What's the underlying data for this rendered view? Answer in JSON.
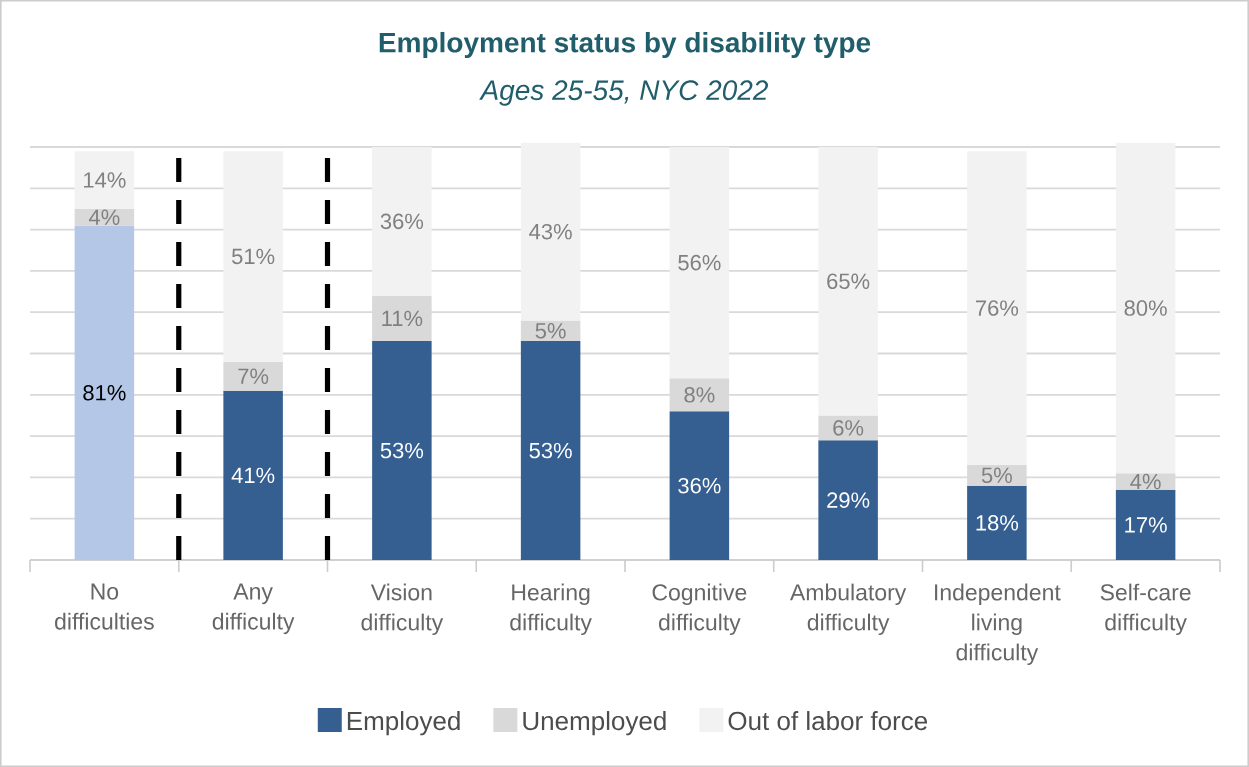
{
  "chart_data": {
    "type": "bar",
    "stacked": true,
    "title": "Employment status by disability type",
    "subtitle": "Ages 25-55, NYC 2022",
    "categories": [
      "No difficulties",
      "Any difficulty",
      "Vision difficulty",
      "Hearing difficulty",
      "Cognitive difficulty",
      "Ambulatory difficulty",
      "Independent living difficulty",
      "Self-care difficulty"
    ],
    "series": [
      {
        "name": "Employed",
        "color": "#355f91",
        "colors": [
          "#b4c7e7",
          "#355f91",
          "#355f91",
          "#355f91",
          "#355f91",
          "#355f91",
          "#355f91",
          "#355f91"
        ],
        "values": [
          81,
          41,
          53,
          53,
          36,
          29,
          18,
          17
        ],
        "value_labels": [
          "81%",
          "41%",
          "53%",
          "53%",
          "36%",
          "29%",
          "18%",
          "17%"
        ]
      },
      {
        "name": "Unemployed",
        "color": "#d9d9d9",
        "values": [
          4,
          7,
          11,
          5,
          8,
          6,
          5,
          4
        ],
        "value_labels": [
          "4%",
          "7%",
          "11%",
          "5%",
          "8%",
          "6%",
          "5%",
          "4%"
        ]
      },
      {
        "name": "Out of labor force",
        "color": "#f2f2f2",
        "values": [
          14,
          51,
          36,
          43,
          56,
          65,
          76,
          80
        ],
        "value_labels": [
          "14%",
          "51%",
          "36%",
          "43%",
          "56%",
          "65%",
          "76%",
          "80%"
        ]
      }
    ],
    "ylim": [
      0,
      101
    ],
    "yticks": [
      {
        "value": 0,
        "label": null
      },
      {
        "value": 10,
        "label": null
      },
      {
        "value": 20,
        "label": null
      },
      {
        "value": 30,
        "label": null
      },
      {
        "value": 40,
        "label": null
      },
      {
        "value": 50,
        "label": null
      },
      {
        "value": 60,
        "label": null
      },
      {
        "value": 70,
        "label": null
      },
      {
        "value": 80,
        "label": null
      },
      {
        "value": 90,
        "label": null
      },
      {
        "value": 100,
        "label": null
      }
    ],
    "tick_labels": "x",
    "grid": "y",
    "legend": "bottom"
  }
}
